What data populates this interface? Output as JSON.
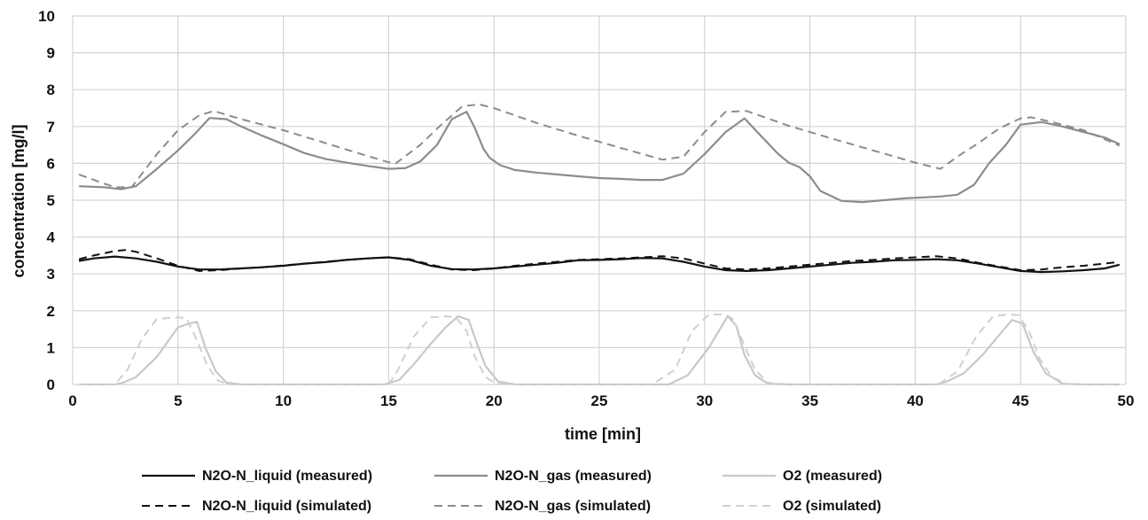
{
  "chart_data": {
    "type": "line",
    "title": "",
    "xlabel": "time [min]",
    "ylabel": "concentration [mg/l]",
    "xlim": [
      0,
      50
    ],
    "ylim": [
      0,
      10
    ],
    "xticks": [
      0,
      5,
      10,
      15,
      20,
      25,
      30,
      35,
      40,
      45,
      50
    ],
    "yticks": [
      0,
      1,
      2,
      3,
      4,
      5,
      6,
      7,
      8,
      9,
      10
    ],
    "grid": true,
    "legend_position": "bottom",
    "series": [
      {
        "name": "N2O-N_liquid (measured)",
        "color": "#111111",
        "dash": "solid",
        "x": [
          0.3,
          1,
          2,
          3,
          4,
          5,
          6,
          7,
          8,
          9,
          10,
          11,
          12,
          13,
          14,
          15,
          16,
          17,
          18,
          19,
          20,
          21,
          22,
          23,
          24,
          25,
          26,
          27,
          28,
          29,
          30,
          31,
          32,
          33,
          34,
          35,
          36,
          37,
          38,
          39,
          40,
          41,
          42,
          43,
          44,
          45,
          46,
          47,
          48,
          49,
          49.7
        ],
        "y": [
          3.35,
          3.42,
          3.47,
          3.42,
          3.33,
          3.2,
          3.12,
          3.12,
          3.15,
          3.18,
          3.22,
          3.28,
          3.32,
          3.38,
          3.42,
          3.45,
          3.38,
          3.22,
          3.13,
          3.12,
          3.15,
          3.2,
          3.25,
          3.3,
          3.37,
          3.38,
          3.4,
          3.43,
          3.42,
          3.33,
          3.2,
          3.1,
          3.08,
          3.1,
          3.15,
          3.2,
          3.25,
          3.3,
          3.33,
          3.37,
          3.38,
          3.4,
          3.37,
          3.28,
          3.18,
          3.08,
          3.05,
          3.07,
          3.1,
          3.15,
          3.25
        ]
      },
      {
        "name": "N2O-N_liquid (simulated)",
        "color": "#111111",
        "dash": "dashed",
        "x": [
          0.3,
          1,
          2,
          2.5,
          3,
          4,
          5,
          6,
          7,
          8,
          9,
          10,
          11,
          12,
          13,
          14,
          15,
          16,
          17,
          18,
          19,
          20,
          21,
          22,
          23,
          24,
          25,
          26,
          27,
          28,
          29,
          30,
          31,
          32,
          33,
          34,
          35,
          36,
          37,
          38,
          39,
          40,
          41,
          42,
          43,
          44,
          45,
          46,
          47,
          48,
          49,
          49.7
        ],
        "y": [
          3.4,
          3.5,
          3.62,
          3.65,
          3.6,
          3.42,
          3.22,
          3.08,
          3.1,
          3.15,
          3.18,
          3.23,
          3.28,
          3.33,
          3.38,
          3.42,
          3.45,
          3.4,
          3.25,
          3.12,
          3.1,
          3.15,
          3.22,
          3.28,
          3.33,
          3.38,
          3.4,
          3.42,
          3.45,
          3.48,
          3.42,
          3.28,
          3.15,
          3.12,
          3.15,
          3.2,
          3.25,
          3.3,
          3.35,
          3.38,
          3.42,
          3.45,
          3.48,
          3.42,
          3.3,
          3.2,
          3.1,
          3.12,
          3.18,
          3.22,
          3.28,
          3.33
        ]
      },
      {
        "name": "N2O-N_gas (measured)",
        "color": "#8c8c8c",
        "dash": "solid",
        "x": [
          0.3,
          1.5,
          2.3,
          3,
          4,
          5,
          5.8,
          6.5,
          7.3,
          8,
          9,
          10,
          11,
          12,
          13,
          14,
          15,
          15.8,
          16.5,
          17.3,
          18,
          18.7,
          19.1,
          19.5,
          19.8,
          20.3,
          21,
          22,
          23,
          24,
          25,
          26,
          27,
          28,
          29,
          30,
          31,
          31.9,
          32.5,
          33,
          33.5,
          34,
          34.5,
          35,
          35.5,
          36.5,
          37.5,
          38.5,
          39.5,
          40.5,
          41.2,
          42,
          42.8,
          43.5,
          44.3,
          45,
          46,
          47,
          48,
          49,
          49.7
        ],
        "y": [
          5.38,
          5.35,
          5.3,
          5.38,
          5.85,
          6.35,
          6.8,
          7.23,
          7.2,
          7.0,
          6.75,
          6.52,
          6.28,
          6.12,
          6.02,
          5.93,
          5.85,
          5.87,
          6.05,
          6.5,
          7.2,
          7.4,
          6.95,
          6.4,
          6.15,
          5.95,
          5.82,
          5.75,
          5.7,
          5.65,
          5.6,
          5.58,
          5.55,
          5.55,
          5.72,
          6.25,
          6.85,
          7.22,
          6.85,
          6.55,
          6.25,
          6.02,
          5.9,
          5.65,
          5.25,
          4.98,
          4.95,
          5.0,
          5.05,
          5.08,
          5.1,
          5.15,
          5.42,
          6.0,
          6.5,
          7.05,
          7.12,
          7.0,
          6.85,
          6.7,
          6.52
        ]
      },
      {
        "name": "N2O-N_gas (simulated)",
        "color": "#8c8c8c",
        "dash": "dashed",
        "x": [
          0.3,
          1,
          2,
          2.8,
          4,
          5,
          6,
          6.7,
          8,
          10,
          12,
          14,
          15.3,
          16.5,
          17.5,
          18.5,
          19.3,
          20,
          22,
          24,
          26,
          28,
          29,
          30,
          31,
          32,
          34,
          36,
          38,
          40,
          41.2,
          42,
          43,
          44,
          45,
          45.5,
          46.5,
          48,
          49.7
        ],
        "y": [
          5.7,
          5.55,
          5.35,
          5.35,
          6.25,
          6.9,
          7.3,
          7.42,
          7.2,
          6.9,
          6.55,
          6.2,
          5.98,
          6.5,
          7.05,
          7.55,
          7.6,
          7.5,
          7.1,
          6.75,
          6.42,
          6.1,
          6.18,
          6.85,
          7.4,
          7.42,
          7.02,
          6.68,
          6.35,
          6.02,
          5.85,
          6.18,
          6.55,
          6.95,
          7.22,
          7.25,
          7.12,
          6.9,
          6.48
        ]
      },
      {
        "name": "O2 (measured)",
        "color": "#c8c8c8",
        "dash": "solid",
        "x": [
          0.3,
          2,
          2.4,
          3,
          4,
          5,
          5.5,
          5.9,
          6.3,
          6.8,
          7.3,
          8,
          10,
          12,
          14,
          14.8,
          15.5,
          16.2,
          17,
          17.7,
          18.3,
          18.8,
          19.2,
          19.6,
          20.2,
          21,
          24,
          27,
          28.3,
          29.2,
          30.2,
          31.1,
          31.5,
          31.9,
          32.4,
          33,
          34,
          36,
          38,
          40,
          41,
          41.5,
          42.3,
          43.2,
          44,
          44.6,
          45.1,
          45.6,
          46.2,
          47,
          48,
          49.7
        ],
        "y": [
          0,
          0,
          0.05,
          0.2,
          0.75,
          1.55,
          1.65,
          1.7,
          1.0,
          0.35,
          0.05,
          0,
          0,
          0,
          0,
          0,
          0.12,
          0.55,
          1.1,
          1.55,
          1.85,
          1.75,
          1.1,
          0.5,
          0.08,
          0,
          0,
          0,
          0,
          0.25,
          1.0,
          1.85,
          1.6,
          0.8,
          0.25,
          0.02,
          0,
          0,
          0,
          0,
          0,
          0.08,
          0.3,
          0.8,
          1.35,
          1.75,
          1.65,
          0.9,
          0.3,
          0.02,
          0,
          0
        ]
      },
      {
        "name": "O2 (simulated)",
        "color": "#d0d0d0",
        "dash": "dashed",
        "x": [
          0.3,
          2,
          2.6,
          3.3,
          4,
          5,
          5.4,
          5.9,
          6.4,
          6.9,
          7.5,
          8,
          10,
          12,
          14,
          15,
          15.4,
          16.2,
          17,
          17.7,
          18.2,
          18.7,
          19.1,
          19.6,
          20.1,
          21,
          24,
          27.5,
          28.6,
          29.4,
          30.2,
          31,
          31.4,
          31.9,
          32.4,
          33,
          34,
          36,
          38,
          40,
          41.1,
          42,
          42.9,
          43.7,
          44.4,
          44.9,
          45.4,
          45.9,
          46.5,
          47.2,
          48,
          49.7
        ],
        "y": [
          0,
          0,
          0.4,
          1.25,
          1.78,
          1.82,
          1.8,
          1.2,
          0.5,
          0.1,
          0,
          0,
          0,
          0,
          0,
          0,
          0.35,
          1.3,
          1.82,
          1.85,
          1.82,
          1.45,
          0.75,
          0.2,
          0.02,
          0,
          0,
          0,
          0.4,
          1.45,
          1.9,
          1.9,
          1.75,
          1.05,
          0.4,
          0.05,
          0,
          0,
          0,
          0,
          0,
          0.35,
          1.3,
          1.85,
          1.9,
          1.88,
          1.45,
          0.7,
          0.2,
          0.02,
          0,
          0
        ]
      }
    ]
  }
}
